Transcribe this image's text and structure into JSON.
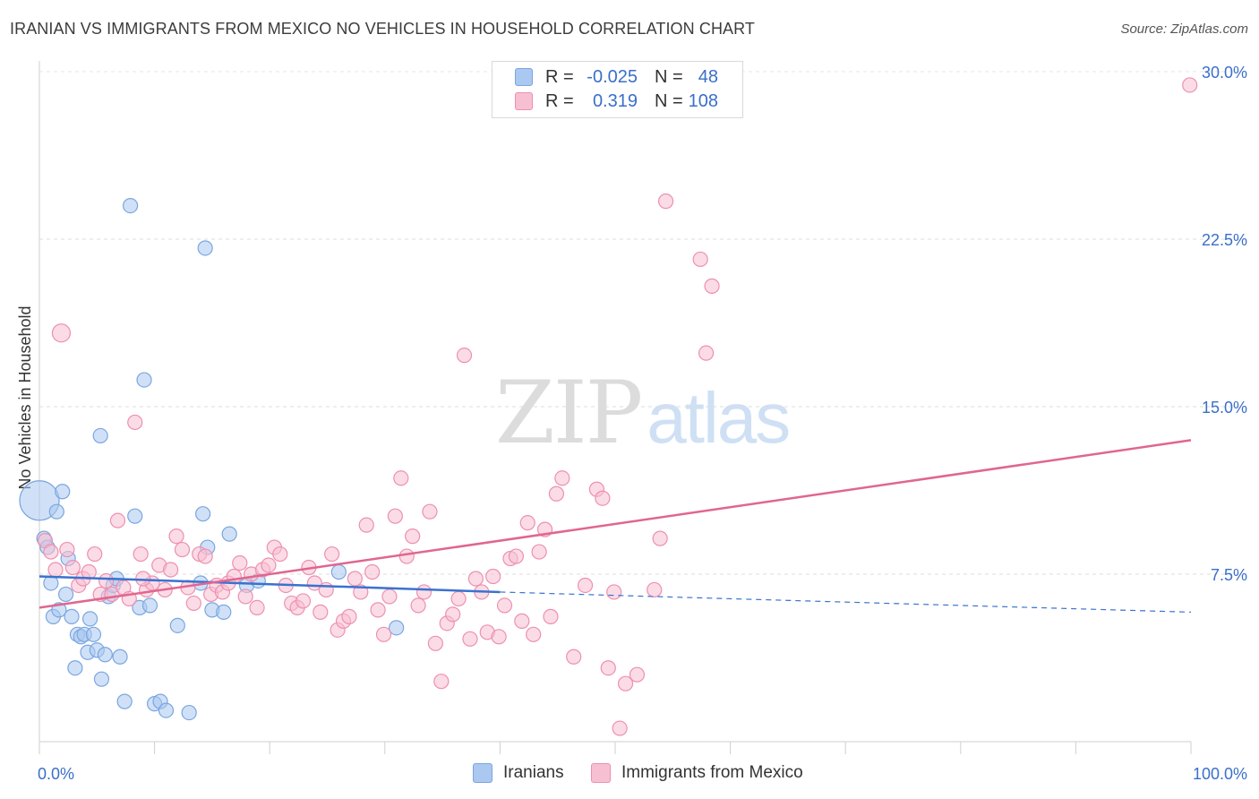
{
  "title": "IRANIAN VS IMMIGRANTS FROM MEXICO NO VEHICLES IN HOUSEHOLD CORRELATION CHART",
  "source": "Source: ZipAtlas.com",
  "watermark": {
    "zip": "ZIP",
    "atlas": "atlas"
  },
  "legend": {
    "rows": [
      {
        "r_label": "R =",
        "r_value": "-0.025",
        "n_label": "N =",
        "n_value": "48",
        "color": "#aac8f0",
        "border": "#7aa6e0"
      },
      {
        "r_label": "R =",
        "r_value": "0.319",
        "n_label": "N =",
        "n_value": "108",
        "color": "#f7c0d2",
        "border": "#ee8fb0"
      }
    ]
  },
  "chart_data": {
    "type": "scatter",
    "ylabel": "No Vehicles in Household",
    "xlim": [
      0,
      100
    ],
    "ylim": [
      0,
      30
    ],
    "x_tick_labels": [
      "0.0%",
      "100.0%"
    ],
    "y_ticks": [
      7.5,
      15.0,
      22.5,
      30.0
    ],
    "y_tick_labels": [
      "7.5%",
      "15.0%",
      "22.5%",
      "30.0%"
    ],
    "grid": true,
    "series": [
      {
        "name": "Iranians",
        "color": "#aac8f0",
        "stroke": "#7aa6e0",
        "line_color": "#3a72cf",
        "trend": {
          "x0": 0,
          "y0": 7.4,
          "x1": 40,
          "y1": 6.7,
          "dashed_to_x": 100,
          "dashed_to_y": 5.8
        },
        "points": [
          [
            0.0,
            10.8
          ],
          [
            0.4,
            9.1
          ],
          [
            0.7,
            8.7
          ],
          [
            1.0,
            7.1
          ],
          [
            1.2,
            5.6
          ],
          [
            1.5,
            10.3
          ],
          [
            1.7,
            5.9
          ],
          [
            2.0,
            11.2
          ],
          [
            2.3,
            6.6
          ],
          [
            2.5,
            8.2
          ],
          [
            2.8,
            5.6
          ],
          [
            3.1,
            3.3
          ],
          [
            3.3,
            4.8
          ],
          [
            3.6,
            4.7
          ],
          [
            3.9,
            4.8
          ],
          [
            4.2,
            4.0
          ],
          [
            4.4,
            5.5
          ],
          [
            4.7,
            4.8
          ],
          [
            5.0,
            4.1
          ],
          [
            5.4,
            2.8
          ],
          [
            5.7,
            3.9
          ],
          [
            6.0,
            6.5
          ],
          [
            6.4,
            7.0
          ],
          [
            6.7,
            7.3
          ],
          [
            7.0,
            3.8
          ],
          [
            7.4,
            1.8
          ],
          [
            7.9,
            24.0
          ],
          [
            8.3,
            10.1
          ],
          [
            8.7,
            6.0
          ],
          [
            9.1,
            16.2
          ],
          [
            9.6,
            6.1
          ],
          [
            10.0,
            1.7
          ],
          [
            10.5,
            1.8
          ],
          [
            11.0,
            1.4
          ],
          [
            12.0,
            5.2
          ],
          [
            13.0,
            1.3
          ],
          [
            14.0,
            7.1
          ],
          [
            14.2,
            10.2
          ],
          [
            14.4,
            22.1
          ],
          [
            14.6,
            8.7
          ],
          [
            15.0,
            5.9
          ],
          [
            16.0,
            5.8
          ],
          [
            16.5,
            9.3
          ],
          [
            18.0,
            7.0
          ],
          [
            19.0,
            7.2
          ],
          [
            5.3,
            13.7
          ],
          [
            26.0,
            7.6
          ],
          [
            31.0,
            5.1
          ]
        ],
        "sizes": {
          "0": 22
        },
        "default_radius": 8
      },
      {
        "name": "Immigrants from Mexico",
        "color": "#f7c0d2",
        "stroke": "#ee8fb0",
        "line_color": "#e06690",
        "trend": {
          "x0": 0,
          "y0": 6.0,
          "x1": 100,
          "y1": 13.5
        },
        "points": [
          [
            0.5,
            9.0
          ],
          [
            1.0,
            8.5
          ],
          [
            1.4,
            7.7
          ],
          [
            1.9,
            18.3
          ],
          [
            2.4,
            8.6
          ],
          [
            2.9,
            7.8
          ],
          [
            3.4,
            7.0
          ],
          [
            3.8,
            7.3
          ],
          [
            4.3,
            7.6
          ],
          [
            4.8,
            8.4
          ],
          [
            5.3,
            6.6
          ],
          [
            5.8,
            7.2
          ],
          [
            6.3,
            6.6
          ],
          [
            6.8,
            9.9
          ],
          [
            7.3,
            6.9
          ],
          [
            7.8,
            6.4
          ],
          [
            8.3,
            14.3
          ],
          [
            8.8,
            8.4
          ],
          [
            9.3,
            6.8
          ],
          [
            9.8,
            7.1
          ],
          [
            10.4,
            7.9
          ],
          [
            10.9,
            6.8
          ],
          [
            11.4,
            7.7
          ],
          [
            11.9,
            9.2
          ],
          [
            12.4,
            8.6
          ],
          [
            12.9,
            6.9
          ],
          [
            13.4,
            6.2
          ],
          [
            13.9,
            8.4
          ],
          [
            14.4,
            8.3
          ],
          [
            14.9,
            6.6
          ],
          [
            15.4,
            7.0
          ],
          [
            15.9,
            6.7
          ],
          [
            16.4,
            7.1
          ],
          [
            16.9,
            7.4
          ],
          [
            17.4,
            8.0
          ],
          [
            17.9,
            6.5
          ],
          [
            18.4,
            7.5
          ],
          [
            18.9,
            6.0
          ],
          [
            19.4,
            7.7
          ],
          [
            19.9,
            7.9
          ],
          [
            20.4,
            8.7
          ],
          [
            20.9,
            8.4
          ],
          [
            21.4,
            7.0
          ],
          [
            21.9,
            6.2
          ],
          [
            22.4,
            6.0
          ],
          [
            22.9,
            6.3
          ],
          [
            23.4,
            7.8
          ],
          [
            23.9,
            7.1
          ],
          [
            24.4,
            5.8
          ],
          [
            24.9,
            6.8
          ],
          [
            25.4,
            8.4
          ],
          [
            25.9,
            5.0
          ],
          [
            26.4,
            5.4
          ],
          [
            26.9,
            5.6
          ],
          [
            27.4,
            7.3
          ],
          [
            27.9,
            6.7
          ],
          [
            28.4,
            9.7
          ],
          [
            28.9,
            7.6
          ],
          [
            29.4,
            5.9
          ],
          [
            29.9,
            4.8
          ],
          [
            30.4,
            6.5
          ],
          [
            30.9,
            10.1
          ],
          [
            31.4,
            11.8
          ],
          [
            31.9,
            8.3
          ],
          [
            32.4,
            9.2
          ],
          [
            32.9,
            6.1
          ],
          [
            33.4,
            6.7
          ],
          [
            33.9,
            10.3
          ],
          [
            34.4,
            4.4
          ],
          [
            34.9,
            2.7
          ],
          [
            35.4,
            5.3
          ],
          [
            35.9,
            5.7
          ],
          [
            36.4,
            6.4
          ],
          [
            36.9,
            17.3
          ],
          [
            37.4,
            4.6
          ],
          [
            37.9,
            7.3
          ],
          [
            38.4,
            6.7
          ],
          [
            38.9,
            4.9
          ],
          [
            39.4,
            7.4
          ],
          [
            39.9,
            4.7
          ],
          [
            40.4,
            6.1
          ],
          [
            40.9,
            8.2
          ],
          [
            41.4,
            8.3
          ],
          [
            41.9,
            5.4
          ],
          [
            42.4,
            9.8
          ],
          [
            42.9,
            4.8
          ],
          [
            43.4,
            8.5
          ],
          [
            43.9,
            9.5
          ],
          [
            44.4,
            5.6
          ],
          [
            44.9,
            11.1
          ],
          [
            45.4,
            11.8
          ],
          [
            46.4,
            3.8
          ],
          [
            47.4,
            7.0
          ],
          [
            48.4,
            11.3
          ],
          [
            49.4,
            3.3
          ],
          [
            49.9,
            6.7
          ],
          [
            50.4,
            0.6
          ],
          [
            50.9,
            2.6
          ],
          [
            51.9,
            3.0
          ],
          [
            53.4,
            6.8
          ],
          [
            53.9,
            9.1
          ],
          [
            54.4,
            24.2
          ],
          [
            57.4,
            21.6
          ],
          [
            57.9,
            17.4
          ],
          [
            58.4,
            20.4
          ],
          [
            99.9,
            29.4
          ],
          [
            48.9,
            10.9
          ],
          [
            9.0,
            7.3
          ]
        ],
        "sizes": {
          "3": 10
        },
        "default_radius": 8
      }
    ]
  },
  "bottom_legend": [
    {
      "label": "Iranians",
      "color": "#aac8f0",
      "border": "#7aa6e0"
    },
    {
      "label": "Immigrants from Mexico",
      "color": "#f7c0d2",
      "border": "#ee8fb0"
    }
  ]
}
